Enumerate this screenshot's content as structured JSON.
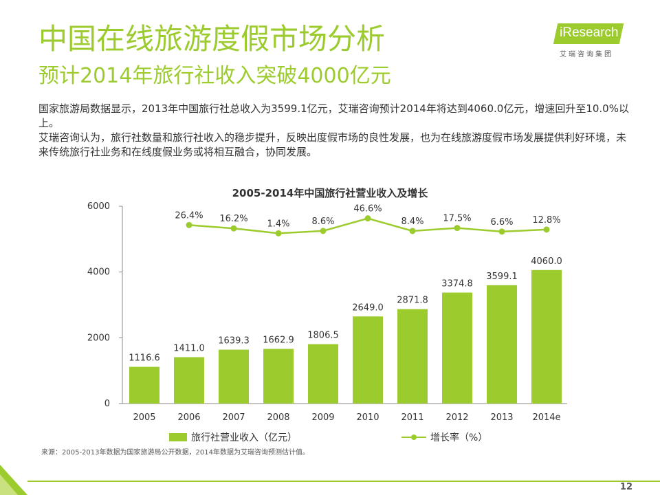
{
  "header": {
    "title": "中国在线旅游度假市场分析",
    "subtitle": "预计2014年旅行社收入突破4000亿元"
  },
  "logo": {
    "name": "iResearch",
    "sub": "艾瑞咨询集团"
  },
  "body": {
    "paragraph1": "国家旅游局数据显示，2013年中国旅行社总收入为3599.1亿元，艾瑞咨询预计2014年将达到4060.0亿元，增速回升至10.0%以上。",
    "paragraph2": "艾瑞咨询认为，旅行社数量和旅行社收入的稳步提升，反映出度假市场的良性发展，也为在线旅游度假市场发展提供利好环境，未来传统旅行社业务和在线度假业务或将相互融合，协同发展。"
  },
  "chart_data": {
    "type": "bar",
    "title": "2005-2014年中国旅行社营业收入及增长",
    "categories": [
      "2005",
      "2006",
      "2007",
      "2008",
      "2009",
      "2010",
      "2011",
      "2012",
      "2013",
      "2014e"
    ],
    "series": [
      {
        "name": "旅行社营业收入（亿元）",
        "type": "bar",
        "values": [
          1116.6,
          1411.0,
          1639.3,
          1662.9,
          1806.5,
          2649.0,
          2871.8,
          3374.8,
          3599.1,
          4060.0
        ],
        "labels": [
          "1116.6",
          "1411.0",
          "1639.3",
          "1662.9",
          "1806.5",
          "2649.0",
          "2871.8",
          "3374.8",
          "3599.1",
          "4060.0"
        ]
      },
      {
        "name": "增长率（%）",
        "type": "line",
        "values": [
          null,
          26.4,
          16.2,
          1.4,
          8.6,
          46.6,
          8.4,
          17.5,
          6.6,
          12.8
        ],
        "labels": [
          "",
          "26.4%",
          "16.2%",
          "1.4%",
          "8.6%",
          "46.6%",
          "8.4%",
          "17.5%",
          "6.6%",
          "12.8%"
        ]
      }
    ],
    "yticks": [
      "0",
      "2000",
      "4000",
      "6000"
    ],
    "ylim": [
      0,
      6000
    ],
    "legend": "bottom",
    "grid": false,
    "colors": {
      "bar": "#9ccb2e",
      "line": "#9ccb2e"
    }
  },
  "legend": {
    "bar_label": "旅行社营业收入（亿元）",
    "line_label": "增长率（%）"
  },
  "source": "来源：2005-2013年数据为国家旅游局公开数据，2014年数据为艾瑞咨询预测估计值。",
  "page_number": "12"
}
